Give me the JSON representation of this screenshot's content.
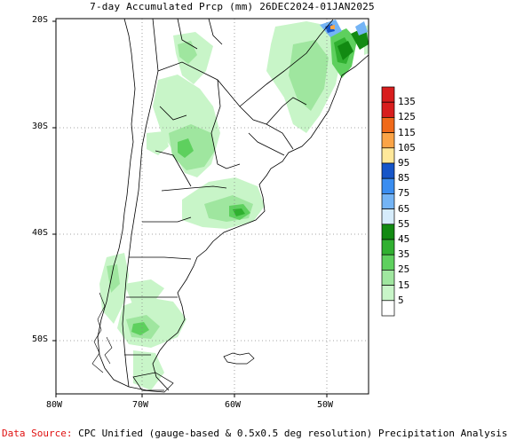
{
  "title": "7-day Accumulated Prcp (mm) 26DEC2024-01JAN2025",
  "lat_ticks": [
    "20S",
    "30S",
    "40S",
    "50S"
  ],
  "lon_ticks": [
    "80W",
    "70W",
    "60W",
    "50W"
  ],
  "legend": {
    "levels": [
      "135",
      "125",
      "115",
      "105",
      "95",
      "85",
      "75",
      "65",
      "55",
      "45",
      "35",
      "25",
      "15",
      "5"
    ],
    "colors": [
      "#d81e1e",
      "#f06a1a",
      "#fba447",
      "#ffe89a",
      "#1655c8",
      "#3a8df0",
      "#74b4f5",
      "#d6ecfb",
      "#128a12",
      "#30b030",
      "#5ed05e",
      "#9fe69f",
      "#c8f5c8",
      "#ffffff"
    ]
  },
  "footer": {
    "label": "Data Source:",
    "text": "CPC Unified (gauge-based & 0.5x0.5 deg resolution) Precipitation Analysis"
  }
}
